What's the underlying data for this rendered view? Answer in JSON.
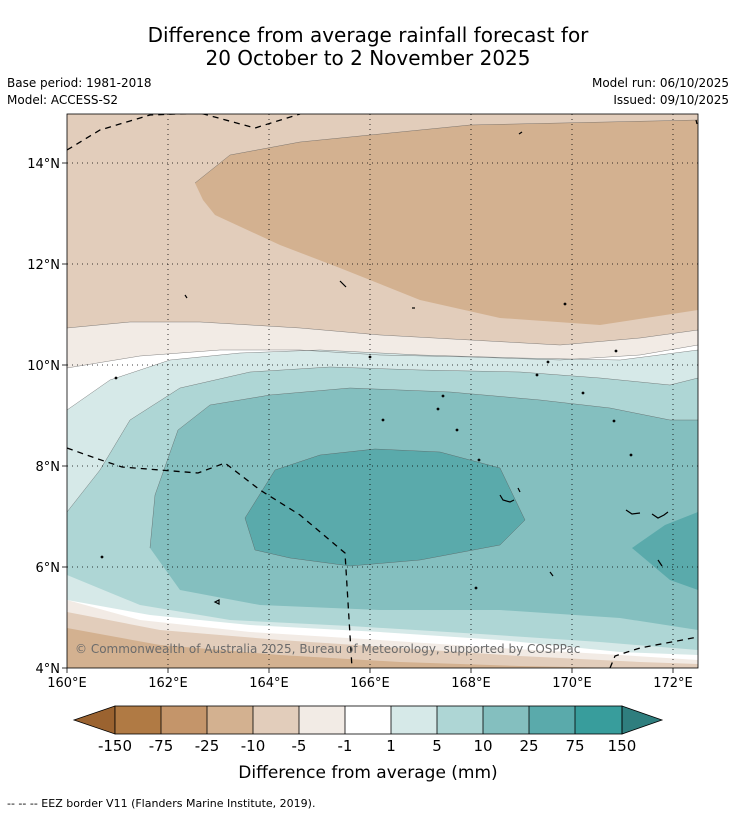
{
  "title_line1": "Difference from average rainfall forecast for",
  "title_line2": "20 October to 2 November 2025",
  "base_period": "Base period: 1981-2018",
  "model": "Model: ACCESS-S2",
  "model_run": "Model run: 06/10/2025",
  "issued": "Issued: 09/10/2025",
  "copyright": "© Commonwealth of Australia 2025, Bureau of Meteorology, supported by COSPPac",
  "lat_labels": [
    "14°N",
    "12°N",
    "10°N",
    "8°N",
    "6°N",
    "4°N"
  ],
  "lon_labels": [
    "160°E",
    "162°E",
    "164°E",
    "166°E",
    "168°E",
    "170°E",
    "172°E"
  ],
  "colorbar": {
    "ticks": [
      "-150",
      "-75",
      "-25",
      "-10",
      "-5",
      "-1",
      "1",
      "5",
      "10",
      "25",
      "75",
      "150"
    ],
    "colors": [
      "#9b6330",
      "#b07a44",
      "#c4956a",
      "#d3b190",
      "#e2cdbb",
      "#f2ebe5",
      "#ffffff",
      "#d6e9e8",
      "#aed6d5",
      "#84bfbf",
      "#5aaaab",
      "#389d9c",
      "#2f7e7e"
    ],
    "label": "Difference from average (mm)"
  },
  "footer": "--  --  -- EEZ border V11 (Flanders Marine Institute, 2019)."
}
